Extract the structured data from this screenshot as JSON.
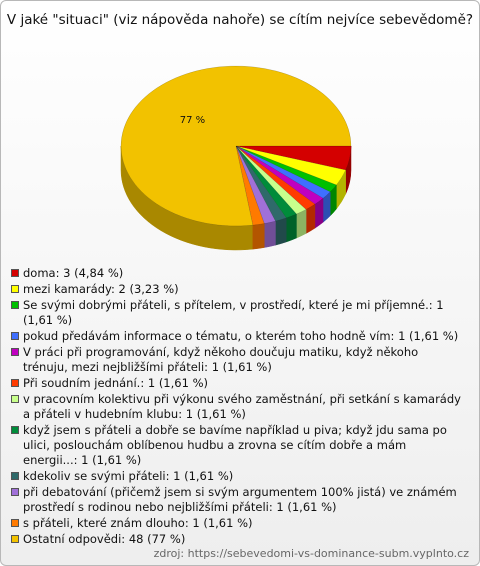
{
  "chart_data": {
    "type": "pie3d",
    "title": "V jaké \"situaci\" (viz nápověda nahoře) se cítím nejvíce sebevědomě?",
    "categories": [
      "doma: 3 (4,84 %)",
      "mezi kamarády: 2 (3,23 %)",
      "Se svými dobrými přáteli, s přítelem, v prostředí, které je mi příjemné.: 1 (1,61 %)",
      "pokud předávám informace o tématu, o kterém toho hodně vím: 1 (1,61 %)",
      "V práci při programování, když někoho doučuju matiku, když někoho trénuju, mezi nejbližšími přáteli: 1 (1,61 %)",
      "Při soudním jednání.: 1 (1,61 %)",
      "v pracovním kolektivu při výkonu svého zaměstnání, při setkání s kamarády a přáteli v hudebním klubu: 1 (1,61 %)",
      "když jsem s přáteli a dobře se bavíme například u piva; když jdu sama po ulici, poslouchám oblíbenou hudbu a zrovna se cítím dobře a mám energii...: 1 (1,61 %)",
      "kdekoliv se svými přáteli: 1 (1,61 %)",
      "při debatování (přičemž jsem si svým argumentem 100% jistá) ve známém prostředí s rodinou nebo nejbližšími přáteli: 1 (1,61 %)",
      "s přáteli, které znám dlouho: 1 (1,61 %)",
      "Ostatní odpovědi: 48 (77 %)"
    ],
    "values": [
      4.84,
      3.23,
      1.61,
      1.61,
      1.61,
      1.61,
      1.61,
      1.61,
      1.61,
      1.61,
      1.61,
      77
    ],
    "value_labels": [
      null,
      null,
      null,
      null,
      null,
      null,
      null,
      null,
      null,
      null,
      null,
      "77 %"
    ],
    "colors": [
      "#d40000",
      "#ffff00",
      "#00c000",
      "#3f6fff",
      "#c000c0",
      "#ff3b00",
      "#c8ff8c",
      "#008c3a",
      "#2f6a6a",
      "#a070d8",
      "#ff7a00",
      "#f2c200"
    ],
    "source": "zdroj: https://sebevedomi-vs-dominance-subm.vyplnto.cz"
  }
}
